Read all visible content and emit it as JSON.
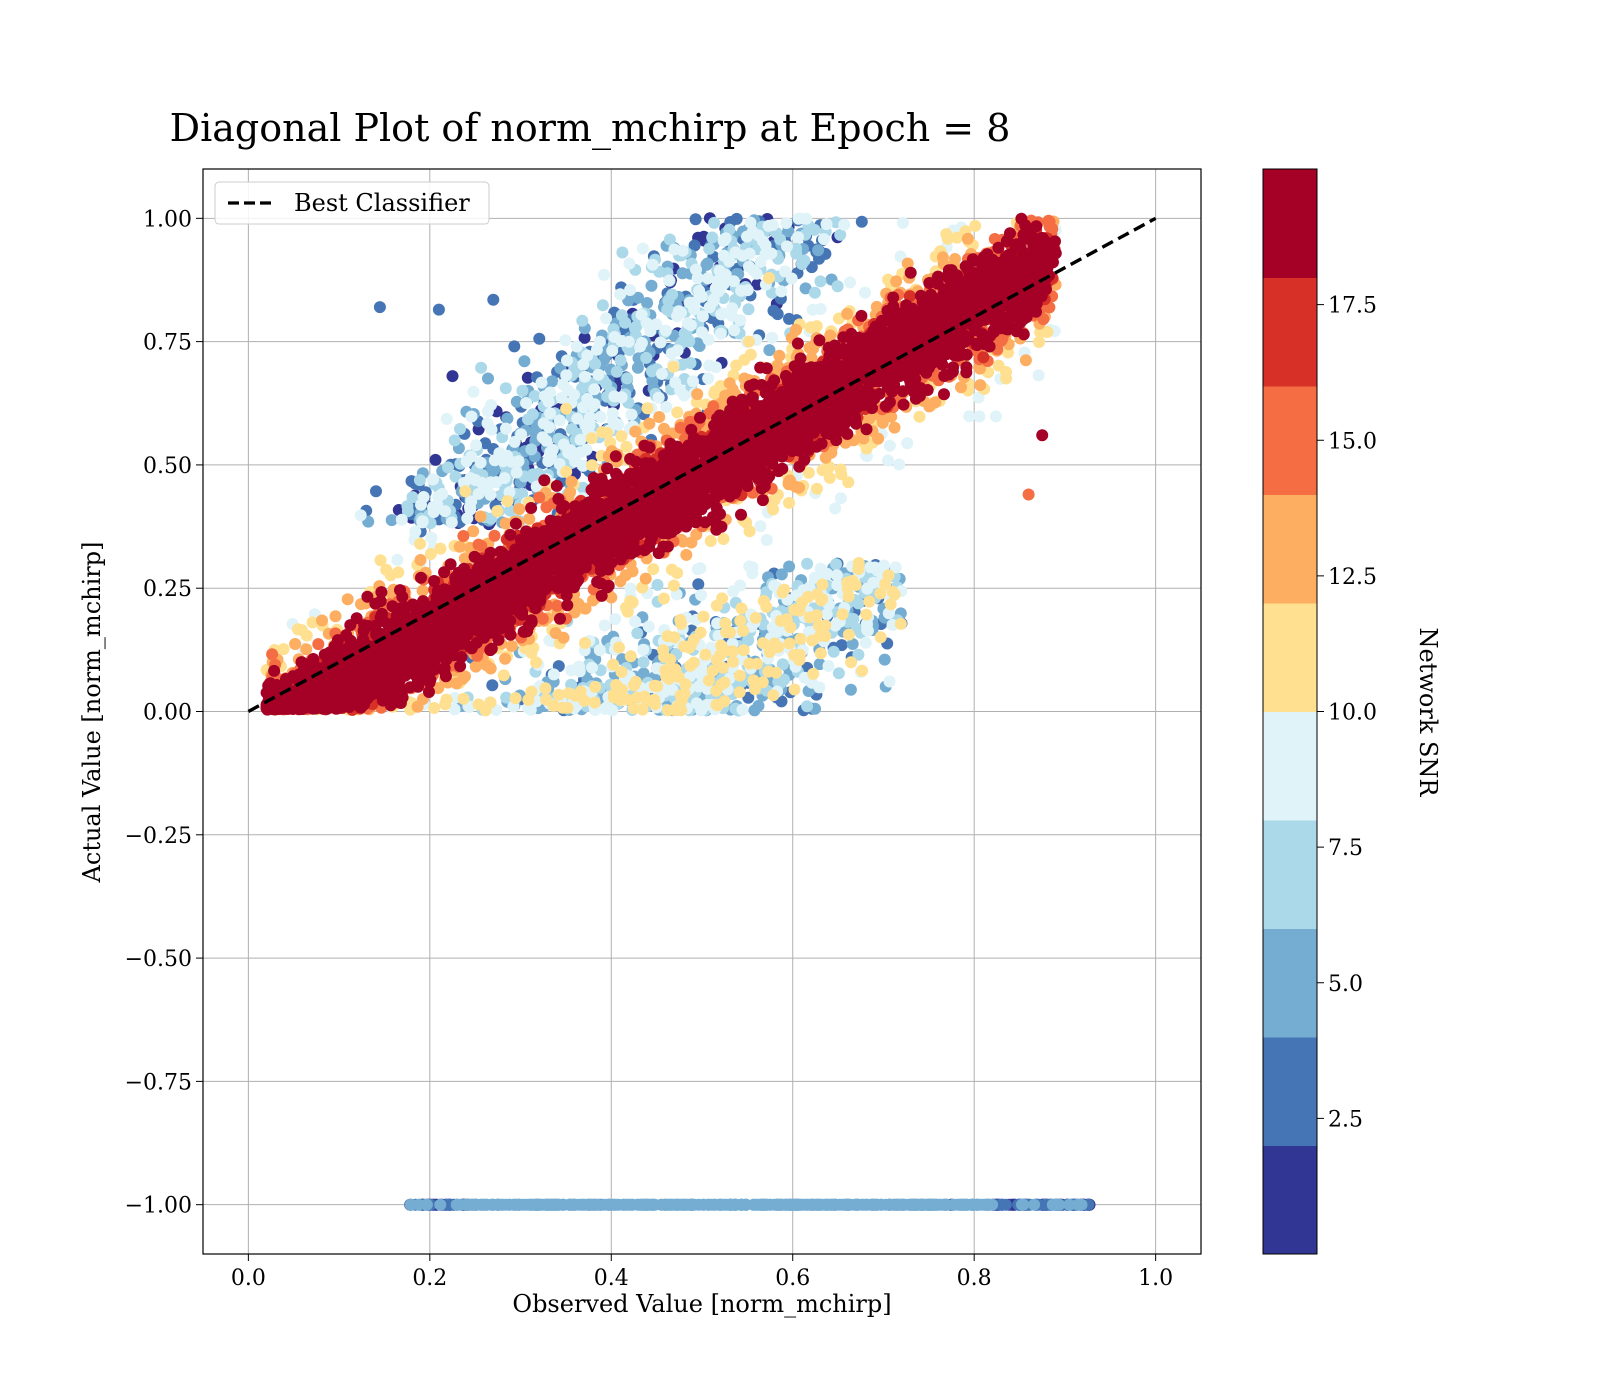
{
  "chart_data": {
    "type": "scatter",
    "title": "Diagonal Plot of norm_mchirp at Epoch = 8",
    "xlabel": "Observed Value [norm_mchirp]",
    "ylabel": "Actual Value [norm_mchirp]",
    "xlim": [
      -0.05,
      1.05
    ],
    "ylim": [
      -1.1,
      1.1
    ],
    "x_ticks": [
      0.0,
      0.2,
      0.4,
      0.6,
      0.8,
      1.0
    ],
    "x_tick_labels": [
      "0.0",
      "0.2",
      "0.4",
      "0.6",
      "0.8",
      "1.0"
    ],
    "y_ticks": [
      1.0,
      0.75,
      0.5,
      0.25,
      0.0,
      -0.25,
      -0.5,
      -0.75,
      -1.0
    ],
    "y_tick_labels": [
      "1.00",
      "0.75",
      "0.50",
      "0.25",
      "0.00",
      "−0.25",
      "−0.50",
      "−0.75",
      "−1.00"
    ],
    "grid": true,
    "legend": {
      "placement": "upper-left",
      "entries": [
        {
          "label": "Best Classifier",
          "style": "dashed",
          "color": "#000000"
        }
      ]
    },
    "reference_line": {
      "name": "Best Classifier",
      "x": [
        0.0,
        1.0
      ],
      "y": [
        0.0,
        1.0
      ]
    },
    "colorbar": {
      "label": "Network SNR",
      "range": [
        0,
        20
      ],
      "boundaries": [
        0,
        2,
        4,
        6,
        8,
        10,
        12,
        14,
        16,
        18,
        20
      ],
      "colors": [
        "#313695",
        "#4575b4",
        "#74add1",
        "#abd9e9",
        "#e0f3f8",
        "#fee090",
        "#fdae61",
        "#f46d43",
        "#d73027",
        "#a50026"
      ],
      "ticks": [
        2.5,
        5.0,
        7.5,
        10.0,
        12.5,
        15.0,
        17.5
      ],
      "tick_labels": [
        "2.5",
        "5.0",
        "7.5",
        "10.0",
        "12.5",
        "15.0",
        "17.5"
      ]
    },
    "clusters": {
      "diagonal_band": {
        "x_range": [
          0.02,
          0.88
        ],
        "y_relation": "y ≈ 1.1·x − 0.06",
        "snr_trend": "high SNR (≥18) tightly along diagonal, lower SNR spreads further"
      },
      "upper_spread": {
        "x_range": [
          0.14,
          0.68
        ],
        "y_range": [
          0.4,
          1.0
        ],
        "snr": "low (2–10)"
      },
      "lower_spread": {
        "x_range": [
          0.2,
          0.7
        ],
        "y_range": [
          0.0,
          0.3
        ],
        "snr": "low (4–12)"
      },
      "failed_row": {
        "y": -1.0,
        "x_range": [
          0.17,
          0.93
        ],
        "snr": "low (0–6)"
      }
    },
    "outliers": [
      {
        "x": 0.145,
        "y": 0.82,
        "snr": 3
      },
      {
        "x": 0.21,
        "y": 0.815,
        "snr": 3
      },
      {
        "x": 0.27,
        "y": 0.835,
        "snr": 3
      },
      {
        "x": 0.225,
        "y": 0.68,
        "snr": 1
      },
      {
        "x": 0.23,
        "y": 0.4,
        "snr": 1
      },
      {
        "x": 0.86,
        "y": 0.44,
        "snr": 15
      },
      {
        "x": 0.875,
        "y": 0.56,
        "snr": 19
      },
      {
        "x": 0.665,
        "y": 0.11,
        "snr": 3
      },
      {
        "x": 0.675,
        "y": 0.08,
        "snr": 8
      },
      {
        "x": 0.22,
        "y": 0.495,
        "snr": 7
      },
      {
        "x": 0.19,
        "y": 0.365,
        "snr": 3
      }
    ]
  }
}
